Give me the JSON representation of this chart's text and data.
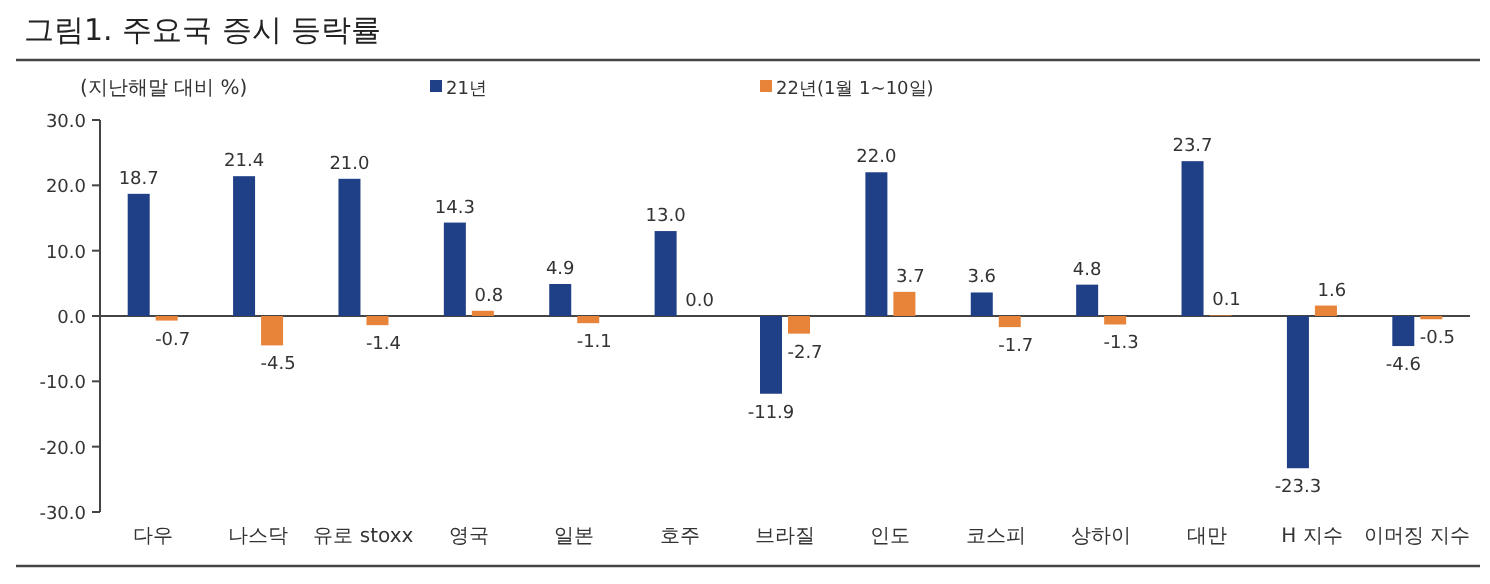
{
  "chart_data": {
    "type": "bar",
    "title": "그림1.  주요국 증시 등락률",
    "ylabel": "(지난해말 대비 %)",
    "categories": [
      "다우",
      "나스닥",
      "유로 stoxx",
      "영국",
      "일본",
      "호주",
      "브라질",
      "인도",
      "코스피",
      "상하이",
      "대만",
      "H 지수",
      "이머징 지수"
    ],
    "series": [
      {
        "name": "21년",
        "color": "#1f3f86",
        "values": [
          18.7,
          21.4,
          21.0,
          14.3,
          4.9,
          13.0,
          -11.9,
          22.0,
          3.6,
          4.8,
          23.7,
          -23.3,
          -4.6
        ],
        "value_labels": [
          "18.7",
          "21.4",
          "21.0",
          "14.3",
          "4.9",
          "13.0",
          "-11.9",
          "22.0",
          "3.6",
          "4.8",
          "23.7",
          "-23.3",
          "-4.6"
        ]
      },
      {
        "name": "22년(1월 1~10일)",
        "color": "#e8833a",
        "values": [
          -0.7,
          -4.5,
          -1.4,
          0.8,
          -1.1,
          0.0,
          -2.7,
          3.7,
          -1.7,
          -1.3,
          0.1,
          1.6,
          -0.5
        ],
        "value_labels": [
          "-0.7",
          "-4.5",
          "-1.4",
          "0.8",
          "-1.1",
          "0.0",
          "-2.7",
          "3.7",
          "-1.7",
          "-1.3",
          "0.1",
          "1.6",
          "-0.5"
        ]
      }
    ],
    "ylim": [
      -30,
      30
    ],
    "yticks": [
      {
        "value": -30,
        "label": "-30.0"
      },
      {
        "value": -20,
        "label": "-20.0"
      },
      {
        "value": -10,
        "label": "-10.0"
      },
      {
        "value": 0,
        "label": "0.0"
      },
      {
        "value": 10,
        "label": "10.0"
      },
      {
        "value": 20,
        "label": "20.0"
      },
      {
        "value": 30,
        "label": "30.0"
      }
    ],
    "legend": "top"
  }
}
